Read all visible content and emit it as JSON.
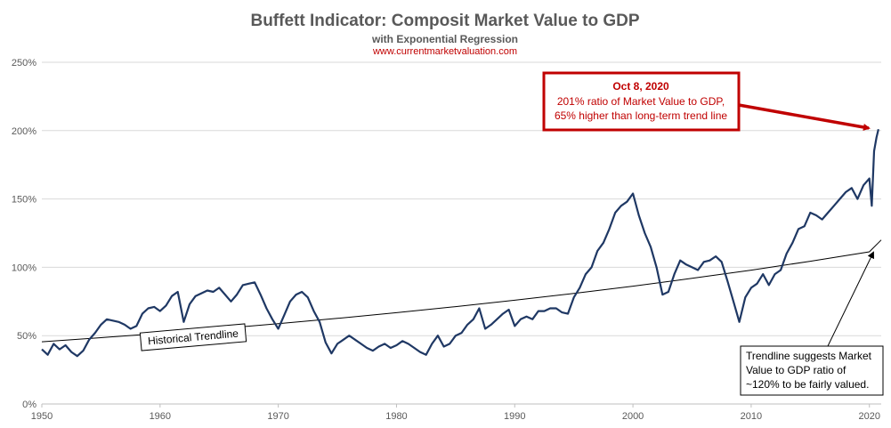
{
  "chart_data": {
    "type": "line",
    "title": "Buffett Indicator: Composit Market Value to GDP",
    "subtitle": "with Exponential Regression",
    "source": "www.currentmarketvaluation.com",
    "xlabel": "",
    "ylabel": "",
    "xlim": [
      1950,
      2021
    ],
    "ylim": [
      0,
      250
    ],
    "x_ticks": [
      "1950",
      "1960",
      "1970",
      "1980",
      "1990",
      "2000",
      "2010",
      "2020"
    ],
    "y_ticks": [
      "0%",
      "50%",
      "100%",
      "150%",
      "200%",
      "250%"
    ],
    "grid": "horizontal",
    "series": [
      {
        "color": "#1f3864",
        "x": [
          1950.0,
          1950.5,
          1951.0,
          1951.5,
          1952.0,
          1952.5,
          1953.0,
          1953.5,
          1954.0,
          1954.5,
          1955.0,
          1955.5,
          1956.0,
          1956.5,
          1957.0,
          1957.5,
          1958.0,
          1958.5,
          1959.0,
          1959.5,
          1960.0,
          1960.5,
          1961.0,
          1961.5,
          1962.0,
          1962.5,
          1963.0,
          1963.5,
          1964.0,
          1964.5,
          1965.0,
          1965.5,
          1966.0,
          1966.5,
          1967.0,
          1967.5,
          1968.0,
          1968.5,
          1969.0,
          1969.5,
          1970.0,
          1970.5,
          1971.0,
          1971.5,
          1972.0,
          1972.5,
          1973.0,
          1973.5,
          1974.0,
          1974.5,
          1975.0,
          1975.5,
          1976.0,
          1976.5,
          1977.0,
          1977.5,
          1978.0,
          1978.5,
          1979.0,
          1979.5,
          1980.0,
          1980.5,
          1981.0,
          1981.5,
          1982.0,
          1982.5,
          1983.0,
          1983.5,
          1984.0,
          1984.5,
          1985.0,
          1985.5,
          1986.0,
          1986.5,
          1987.0,
          1987.5,
          1988.0,
          1988.5,
          1989.0,
          1989.5,
          1990.0,
          1990.5,
          1991.0,
          1991.5,
          1992.0,
          1992.5,
          1993.0,
          1993.5,
          1994.0,
          1994.5,
          1995.0,
          1995.5,
          1996.0,
          1996.5,
          1997.0,
          1997.5,
          1998.0,
          1998.5,
          1999.0,
          1999.5,
          2000.0,
          2000.5,
          2001.0,
          2001.5,
          2002.0,
          2002.5,
          2003.0,
          2003.5,
          2004.0,
          2004.5,
          2005.0,
          2005.5,
          2006.0,
          2006.5,
          2007.0,
          2007.5,
          2008.0,
          2008.5,
          2009.0,
          2009.5,
          2010.0,
          2010.5,
          2011.0,
          2011.5,
          2012.0,
          2012.5,
          2013.0,
          2013.5,
          2014.0,
          2014.5,
          2015.0,
          2015.5,
          2016.0,
          2016.5,
          2017.0,
          2017.5,
          2018.0,
          2018.5,
          2019.0,
          2019.5,
          2020.0,
          2020.2,
          2020.4,
          2020.6,
          2020.77
        ],
        "values": [
          40,
          36,
          44,
          40,
          43,
          38,
          35,
          39,
          47,
          52,
          58,
          62,
          61,
          60,
          58,
          55,
          57,
          66,
          70,
          71,
          68,
          72,
          79,
          82,
          60,
          73,
          79,
          81,
          83,
          82,
          85,
          80,
          75,
          80,
          87,
          88,
          89,
          80,
          70,
          62,
          55,
          65,
          75,
          80,
          82,
          78,
          68,
          60,
          45,
          37,
          44,
          47,
          50,
          47,
          44,
          41,
          39,
          42,
          44,
          41,
          43,
          46,
          44,
          41,
          38,
          36,
          44,
          50,
          42,
          44,
          50,
          52,
          58,
          62,
          70,
          55,
          58,
          62,
          66,
          69,
          57,
          62,
          64,
          62,
          68,
          68,
          70,
          70,
          67,
          66,
          78,
          85,
          95,
          100,
          112,
          118,
          128,
          140,
          145,
          148,
          154,
          138,
          125,
          115,
          100,
          80,
          82,
          95,
          105,
          102,
          100,
          98,
          104,
          105,
          108,
          104,
          90,
          75,
          60,
          78,
          85,
          88,
          95,
          87,
          95,
          98,
          110,
          118,
          128,
          130,
          140,
          138,
          135,
          140,
          145,
          150,
          155,
          158,
          150,
          160,
          165,
          145,
          185,
          195,
          201
        ]
      },
      {
        "name": "Historical Trendline",
        "color": "#000000",
        "x": [
          1950,
          1955,
          1960,
          1965,
          1970,
          1975,
          1980,
          1985,
          1990,
          1995,
          2000,
          2005,
          2010,
          2015,
          2020,
          2021
        ],
        "values": [
          45.5,
          48.5,
          51.7,
          55.1,
          58.8,
          62.6,
          66.8,
          71.2,
          75.9,
          80.9,
          86.2,
          91.9,
          97.9,
          104.4,
          111.3,
          120
        ]
      }
    ],
    "annotations": {
      "peak_title": "Oct 8, 2020",
      "peak_line1": "201% ratio of Market Value to GDP,",
      "peak_line2": "65% higher than long-term trend  line",
      "trend_label": "Historical Trendline",
      "fair_line1": "Trendline suggests Market",
      "fair_line2": "Value to GDP ratio of",
      "fair_line3": "~120% to be fairly valued."
    }
  }
}
